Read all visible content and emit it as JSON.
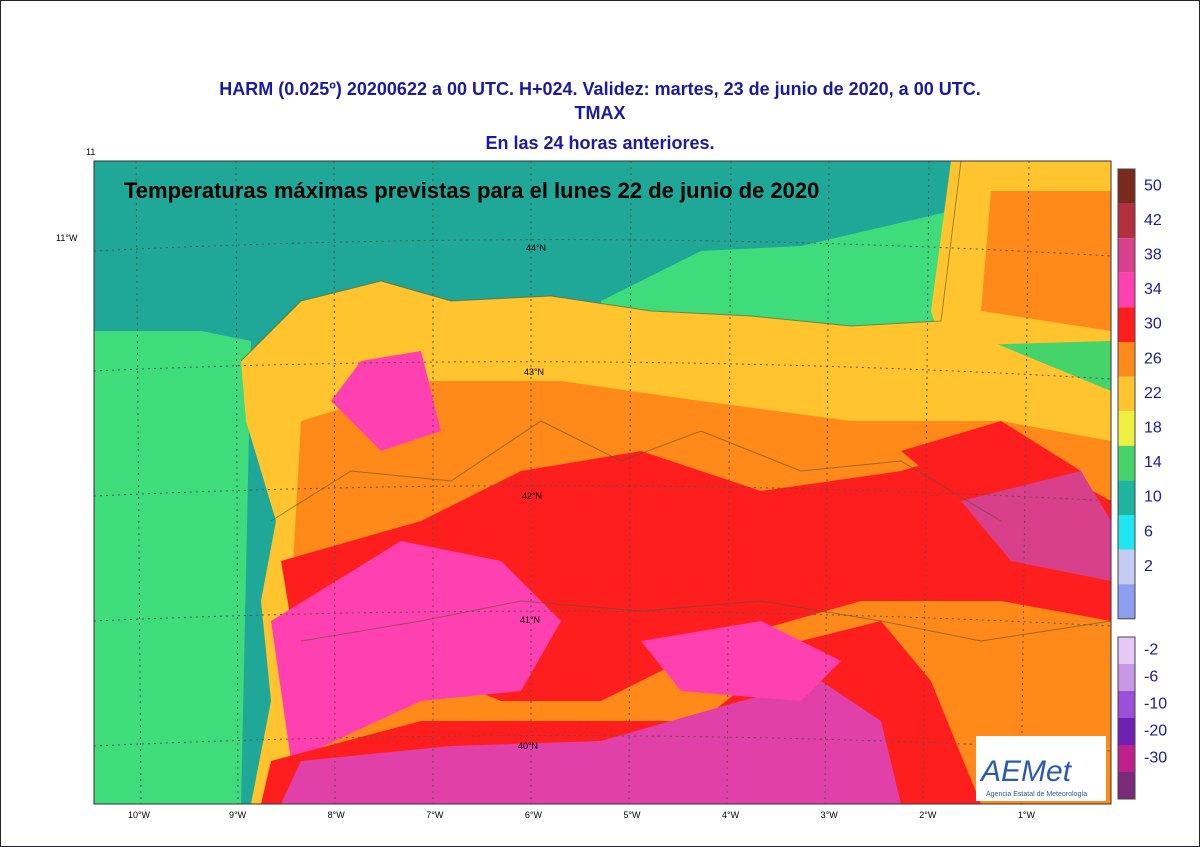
{
  "header": {
    "line1": "HARM (0.025º) 20200622  a 00 UTC.  H+024. Validez: martes, 23 de junio de 2020,  a  00 UTC.",
    "line2": "TMAX",
    "line3": "En las 24 horas anteriores."
  },
  "map": {
    "title": "Temperaturas máximas previstas para el lunes 22 de junio de 2020",
    "corner_labels": [
      "11",
      "11°W"
    ],
    "lon_labels": [
      "10°W",
      "9°W",
      "8°W",
      "7°W",
      "6°W",
      "5°W",
      "4°W",
      "3°W",
      "2°W",
      "1°W"
    ],
    "lat_labels": [
      "44°N",
      "43°N",
      "42°N",
      "41°N",
      "40°N"
    ]
  },
  "legend": {
    "upper": {
      "labels": [
        50,
        42,
        38,
        34,
        30,
        26,
        22,
        18,
        14,
        10,
        6,
        2
      ],
      "colors": [
        "#7a2a1a",
        "#b3303c",
        "#d8408c",
        "#ff40b0",
        "#ff1e1e",
        "#ff8a1a",
        "#ffc42e",
        "#eef040",
        "#44d46a",
        "#1fb4a0",
        "#20e6f0",
        "#c4ccf4",
        "#8c9ef0"
      ]
    },
    "lower": {
      "labels": [
        -2,
        -6,
        -10,
        -20,
        -30
      ],
      "colors": [
        "#e6c8f4",
        "#c898e6",
        "#9a50d8",
        "#7020b4",
        "#c0208e",
        "#7a2c7a"
      ]
    }
  },
  "logo": {
    "name": "AEMet",
    "subtitle": "Agencia Estatal de Meteorología"
  }
}
